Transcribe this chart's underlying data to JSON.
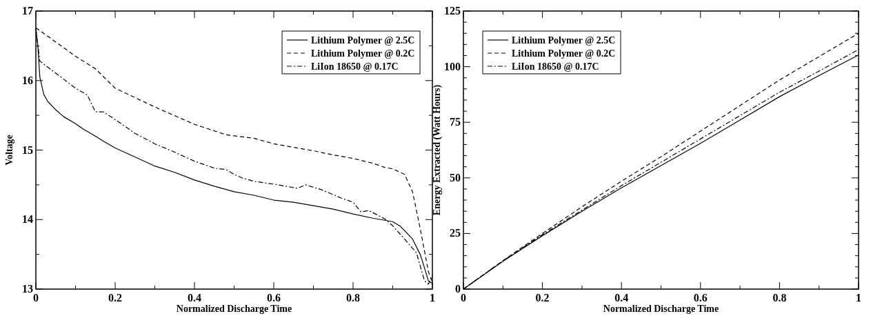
{
  "chart_data": [
    {
      "type": "line",
      "xlabel": "Normalized Discharge Time",
      "ylabel": "Voltage",
      "xlim": [
        0,
        1
      ],
      "ylim": [
        13,
        17
      ],
      "xticks": [
        0,
        {
          "value": 0.1,
          "label": null
        },
        0.2,
        {
          "value": 0.3,
          "label": null
        },
        0.4,
        {
          "value": 0.5,
          "label": null
        },
        0.6,
        {
          "value": 0.7,
          "label": null
        },
        0.8,
        {
          "value": 0.9,
          "label": null
        },
        1
      ],
      "yticks": [
        13,
        {
          "value": 13.5,
          "label": null
        },
        14,
        {
          "value": 14.5,
          "label": null
        },
        15,
        {
          "value": 15.5,
          "label": null
        },
        16,
        {
          "value": 16.5,
          "label": null
        },
        17
      ],
      "grid": false,
      "legend": "top right",
      "marker": "none",
      "series": [
        {
          "name": "Lithium Polymer @ 2.5C",
          "color": "#000000",
          "line_style": "solid",
          "x": [
            0,
            0.005,
            0.01,
            0.02,
            0.03,
            0.05,
            0.07,
            0.1,
            0.12,
            0.15,
            0.17,
            0.2,
            0.25,
            0.3,
            0.35,
            0.4,
            0.45,
            0.5,
            0.55,
            0.6,
            0.65,
            0.7,
            0.75,
            0.8,
            0.85,
            0.9,
            0.92,
            0.95,
            0.97,
            0.99,
            1
          ],
          "values": [
            16.75,
            16.5,
            16.05,
            15.8,
            15.7,
            15.58,
            15.48,
            15.38,
            15.3,
            15.2,
            15.13,
            15.03,
            14.9,
            14.77,
            14.68,
            14.57,
            14.48,
            14.4,
            14.35,
            14.28,
            14.25,
            14.2,
            14.15,
            14.08,
            14.02,
            13.97,
            13.9,
            13.72,
            13.49,
            13.12,
            13.08
          ]
        },
        {
          "name": "Lithium Polymer @ 0.2C",
          "color": "#000000",
          "line_style": "dashed",
          "x": [
            0,
            0.1,
            0.15,
            0.2,
            0.3,
            0.4,
            0.48,
            0.55,
            0.6,
            0.7,
            0.75,
            0.8,
            0.85,
            0.88,
            0.9,
            0.93,
            0.95,
            0.97,
            0.99,
            1
          ],
          "values": [
            16.76,
            16.35,
            16.17,
            15.89,
            15.62,
            15.37,
            15.22,
            15.17,
            15.09,
            14.99,
            14.93,
            14.88,
            14.81,
            14.75,
            14.73,
            14.65,
            14.4,
            13.85,
            13.25,
            13.1
          ]
        },
        {
          "name": "LiIon 18650 @ 0.17C",
          "color": "#000000",
          "line_style": "dashdot",
          "x": [
            0,
            0.01,
            0.1,
            0.13,
            0.15,
            0.17,
            0.2,
            0.25,
            0.3,
            0.35,
            0.4,
            0.45,
            0.48,
            0.5,
            0.52,
            0.55,
            0.6,
            0.66,
            0.68,
            0.72,
            0.77,
            0.8,
            0.82,
            0.84,
            0.88,
            0.9,
            0.93,
            0.96,
            0.98,
            0.99,
            1
          ],
          "values": [
            16.75,
            16.28,
            15.89,
            15.79,
            15.55,
            15.55,
            15.44,
            15.24,
            15.09,
            14.97,
            14.84,
            14.74,
            14.72,
            14.65,
            14.6,
            14.55,
            14.51,
            14.45,
            14.5,
            14.43,
            14.31,
            14.25,
            14.11,
            14.13,
            14.01,
            13.91,
            13.72,
            13.52,
            13.12,
            13.07,
            13.2
          ]
        }
      ]
    },
    {
      "type": "line",
      "xlabel": "Normalized Discharge Time",
      "ylabel": "Energy Extracted (Watt Hours)",
      "xlim": [
        0,
        1
      ],
      "ylim": [
        0,
        125
      ],
      "xticks": [
        0,
        {
          "value": 0.1,
          "label": null
        },
        0.2,
        {
          "value": 0.3,
          "label": null
        },
        0.4,
        {
          "value": 0.5,
          "label": null
        },
        0.6,
        {
          "value": 0.7,
          "label": null
        },
        0.8,
        {
          "value": 0.9,
          "label": null
        },
        1
      ],
      "yticks": [
        0,
        {
          "value": 5,
          "label": null
        },
        {
          "value": 10,
          "label": null
        },
        {
          "value": 15,
          "label": null
        },
        {
          "value": 20,
          "label": null
        },
        25,
        {
          "value": 30,
          "label": null
        },
        {
          "value": 35,
          "label": null
        },
        {
          "value": 40,
          "label": null
        },
        {
          "value": 45,
          "label": null
        },
        50,
        {
          "value": 55,
          "label": null
        },
        {
          "value": 60,
          "label": null
        },
        {
          "value": 65,
          "label": null
        },
        {
          "value": 70,
          "label": null
        },
        75,
        {
          "value": 80,
          "label": null
        },
        {
          "value": 85,
          "label": null
        },
        {
          "value": 90,
          "label": null
        },
        {
          "value": 95,
          "label": null
        },
        100,
        {
          "value": 105,
          "label": null
        },
        {
          "value": 110,
          "label": null
        },
        {
          "value": 115,
          "label": null
        },
        {
          "value": 120,
          "label": null
        },
        125
      ],
      "grid": false,
      "legend": "top left",
      "marker": "none",
      "series": [
        {
          "name": "Lithium Polymer @ 2.5C",
          "color": "#000000",
          "line_style": "solid",
          "x": [
            0,
            0.1,
            0.2,
            0.3,
            0.4,
            0.5,
            0.6,
            0.7,
            0.8,
            0.9,
            1
          ],
          "values": [
            0,
            12.5,
            24,
            35,
            45.5,
            55.5,
            65.5,
            76,
            86.5,
            96,
            105.2
          ]
        },
        {
          "name": "Lithium Polymer @ 0.2C",
          "color": "#000000",
          "line_style": "dashed",
          "x": [
            0,
            0.1,
            0.2,
            0.3,
            0.4,
            0.5,
            0.6,
            0.7,
            0.8,
            0.9,
            1
          ],
          "values": [
            0,
            12.8,
            25,
            37,
            48.5,
            59.5,
            71,
            82.5,
            94,
            104.5,
            115
          ]
        },
        {
          "name": "LiIon 18650 @ 0.17C",
          "color": "#000000",
          "line_style": "dashdot",
          "x": [
            0,
            0.1,
            0.2,
            0.3,
            0.4,
            0.5,
            0.6,
            0.7,
            0.8,
            0.9,
            1
          ],
          "values": [
            0,
            12.7,
            24.5,
            35.5,
            46.5,
            57,
            67.5,
            78,
            88.5,
            98,
            107.7
          ]
        }
      ]
    }
  ]
}
